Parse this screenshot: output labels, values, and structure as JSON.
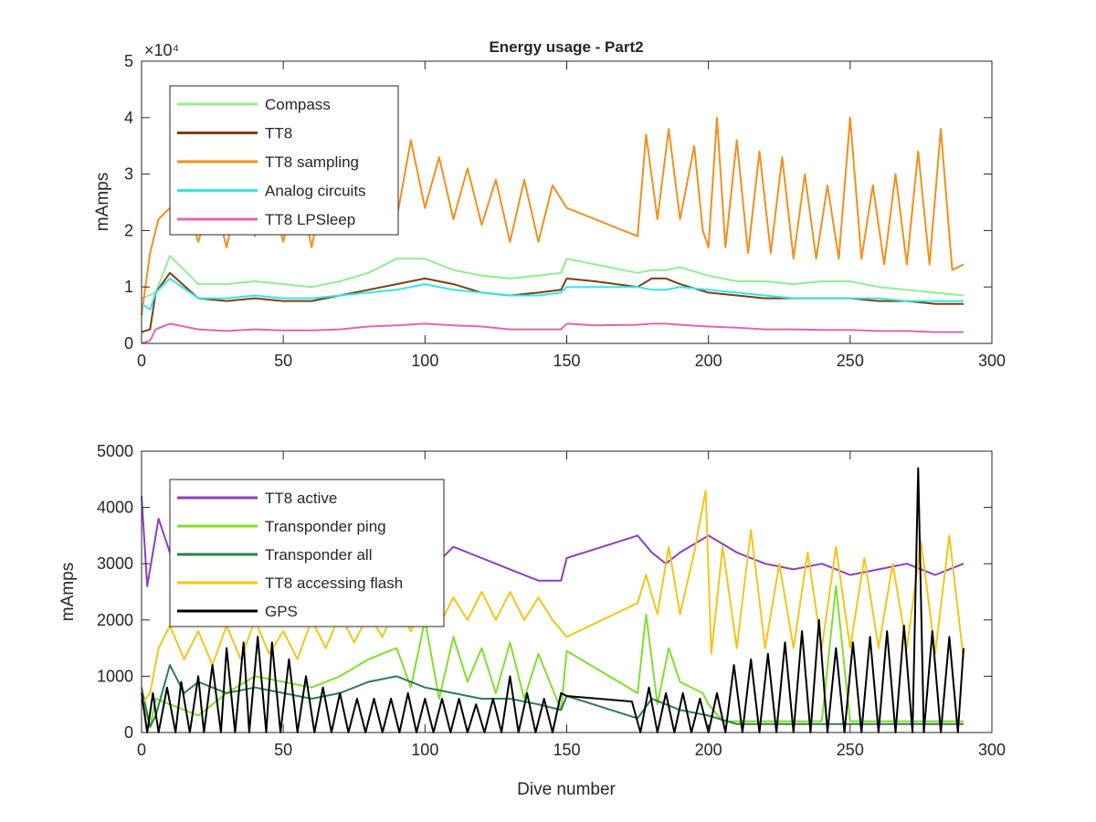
{
  "figure": {
    "title": "Energy usage - Part2",
    "colors": {
      "compass": "#90ee90",
      "tt8": "#7b3f14",
      "tt8_sampling": "#f0901e",
      "analog_circuits": "#33e6e6",
      "tt8_lpsleep": "#e066b0",
      "tt8_active": "#8e3dbe",
      "transponder_ping": "#7ee02a",
      "transponder_all": "#2e7d4f",
      "tt8_accessing_flash": "#f5c518",
      "gps": "#000000"
    }
  },
  "chart_data": [
    {
      "type": "line",
      "title": "Energy usage - Part2",
      "xlabel": "",
      "ylabel": "mAmps",
      "xlim": [
        0,
        300
      ],
      "ylim": [
        0,
        50000
      ],
      "x_ticks": [
        "0",
        "50",
        "100",
        "150",
        "200",
        "250",
        "300"
      ],
      "y_ticks": [
        "0",
        "1",
        "2",
        "3",
        "4",
        "5"
      ],
      "y_exponent_label": "×10⁴",
      "legend_position": "top-left",
      "series": [
        {
          "name": "Compass",
          "color": "#90ee90",
          "x": [
            0,
            5,
            10,
            20,
            30,
            40,
            50,
            60,
            70,
            80,
            90,
            100,
            110,
            120,
            130,
            140,
            148,
            150,
            160,
            175,
            180,
            185,
            190,
            200,
            210,
            220,
            230,
            240,
            250,
            260,
            270,
            280,
            290
          ],
          "y": [
            8000,
            9000,
            15500,
            10500,
            10500,
            11000,
            10500,
            10000,
            11000,
            12500,
            15000,
            15000,
            13000,
            12000,
            11500,
            12000,
            12500,
            15000,
            14000,
            12500,
            13000,
            13000,
            13500,
            12000,
            11000,
            11000,
            10500,
            11000,
            11000,
            10000,
            9500,
            9000,
            8500
          ]
        },
        {
          "name": "TT8",
          "color": "#7b3f14",
          "x": [
            0,
            3,
            5,
            10,
            20,
            30,
            40,
            50,
            60,
            70,
            80,
            90,
            100,
            110,
            120,
            130,
            140,
            148,
            150,
            160,
            175,
            180,
            185,
            190,
            200,
            210,
            220,
            230,
            240,
            250,
            260,
            270,
            280,
            290
          ],
          "y": [
            2000,
            2500,
            9000,
            12500,
            8000,
            7500,
            8000,
            7500,
            7500,
            8500,
            9500,
            10500,
            11500,
            10500,
            9000,
            8500,
            9000,
            9500,
            11500,
            11000,
            10000,
            11500,
            11500,
            10500,
            9000,
            8500,
            8000,
            8000,
            8000,
            8000,
            7500,
            7500,
            7000,
            7000
          ]
        },
        {
          "name": "TT8 sampling",
          "color": "#f0901e",
          "x": [
            0,
            3,
            6,
            10,
            15,
            20,
            25,
            30,
            35,
            40,
            45,
            50,
            55,
            60,
            65,
            70,
            75,
            80,
            85,
            90,
            95,
            100,
            105,
            110,
            115,
            120,
            125,
            130,
            135,
            140,
            145,
            150,
            175,
            178,
            182,
            186,
            190,
            195,
            198,
            200,
            203,
            206,
            210,
            214,
            218,
            222,
            226,
            230,
            234,
            238,
            242,
            246,
            250,
            254,
            258,
            262,
            266,
            270,
            274,
            278,
            282,
            286,
            290
          ],
          "y": [
            5000,
            16000,
            22000,
            24000,
            26000,
            18000,
            27000,
            17000,
            28000,
            19000,
            28000,
            18000,
            29000,
            17000,
            30000,
            20000,
            27000,
            20000,
            32000,
            22000,
            36000,
            24000,
            33000,
            22000,
            31000,
            21000,
            29000,
            18000,
            29000,
            18000,
            28000,
            24000,
            19000,
            37000,
            22000,
            38000,
            22000,
            35000,
            20000,
            17000,
            40000,
            17000,
            36000,
            16000,
            34000,
            16000,
            33000,
            15000,
            30000,
            15000,
            28000,
            15000,
            40000,
            15000,
            28000,
            14000,
            30000,
            14000,
            34000,
            14000,
            38000,
            13000,
            14000
          ]
        },
        {
          "name": "Analog circuits",
          "color": "#33e6e6",
          "x": [
            0,
            3,
            5,
            10,
            20,
            30,
            40,
            50,
            60,
            70,
            80,
            90,
            100,
            110,
            120,
            130,
            140,
            148,
            150,
            160,
            175,
            180,
            185,
            190,
            200,
            210,
            220,
            230,
            240,
            250,
            260,
            270,
            280,
            290
          ],
          "y": [
            7000,
            6000,
            9000,
            11500,
            8000,
            8000,
            8500,
            8000,
            8000,
            8500,
            9000,
            9500,
            10500,
            9500,
            9000,
            8500,
            8500,
            9000,
            10000,
            10000,
            10000,
            9500,
            9500,
            10000,
            9500,
            9000,
            8500,
            8000,
            8000,
            8000,
            8000,
            7500,
            7500,
            7500
          ]
        },
        {
          "name": "TT8 LPSleep",
          "color": "#e066b0",
          "x": [
            0,
            3,
            5,
            10,
            20,
            30,
            40,
            50,
            60,
            70,
            80,
            90,
            100,
            110,
            120,
            130,
            140,
            148,
            150,
            160,
            175,
            180,
            185,
            190,
            200,
            210,
            220,
            230,
            240,
            250,
            260,
            270,
            280,
            290
          ],
          "y": [
            0,
            500,
            2500,
            3500,
            2500,
            2200,
            2500,
            2300,
            2300,
            2500,
            3000,
            3200,
            3500,
            3200,
            3000,
            2500,
            2500,
            2500,
            3500,
            3200,
            3300,
            3500,
            3500,
            3300,
            3000,
            2800,
            2500,
            2500,
            2400,
            2400,
            2200,
            2200,
            2000,
            2000
          ]
        }
      ]
    },
    {
      "type": "line",
      "title": "",
      "xlabel": "Dive number",
      "ylabel": "mAmps",
      "xlim": [
        0,
        300
      ],
      "ylim": [
        0,
        5000
      ],
      "x_ticks": [
        "0",
        "50",
        "100",
        "150",
        "200",
        "250",
        "300"
      ],
      "y_ticks": [
        "0",
        "1000",
        "2000",
        "3000",
        "4000",
        "5000"
      ],
      "legend_position": "top-left",
      "series": [
        {
          "name": "TT8 active",
          "color": "#8e3dbe",
          "x": [
            0,
            2,
            4,
            6,
            8,
            10,
            20,
            30,
            40,
            50,
            60,
            70,
            80,
            90,
            100,
            110,
            120,
            130,
            140,
            148,
            150,
            175,
            180,
            185,
            190,
            200,
            210,
            220,
            230,
            240,
            250,
            260,
            270,
            280,
            290
          ],
          "y": [
            4200,
            2600,
            3200,
            3800,
            3500,
            3200,
            3100,
            3000,
            3300,
            3100,
            3100,
            3000,
            3200,
            3000,
            2800,
            3300,
            3100,
            2900,
            2700,
            2700,
            3100,
            3500,
            3200,
            3000,
            3200,
            3500,
            3200,
            3000,
            2900,
            3000,
            2800,
            2900,
            3000,
            2800,
            3000
          ]
        },
        {
          "name": "Transponder ping",
          "color": "#7ee02a",
          "x": [
            0,
            3,
            5,
            10,
            20,
            30,
            40,
            50,
            60,
            70,
            80,
            90,
            95,
            100,
            105,
            110,
            115,
            120,
            125,
            130,
            135,
            140,
            148,
            150,
            175,
            178,
            182,
            186,
            190,
            198,
            200,
            205,
            210,
            220,
            230,
            240,
            245,
            250,
            260,
            270,
            280,
            290
          ],
          "y": [
            600,
            100,
            600,
            500,
            300,
            700,
            1000,
            900,
            800,
            1000,
            1300,
            1500,
            800,
            2000,
            600,
            1700,
            900,
            1500,
            700,
            1600,
            600,
            1400,
            400,
            1450,
            700,
            2100,
            500,
            1500,
            900,
            700,
            500,
            200,
            200,
            200,
            200,
            200,
            2600,
            200,
            200,
            200,
            200,
            200
          ]
        },
        {
          "name": "Transponder all",
          "color": "#2e7d4f",
          "x": [
            0,
            3,
            5,
            10,
            15,
            20,
            30,
            40,
            50,
            60,
            70,
            80,
            90,
            100,
            110,
            120,
            130,
            140,
            148,
            150,
            175,
            180,
            185,
            190,
            200,
            210,
            220,
            230,
            240,
            250,
            260,
            270,
            280,
            290
          ],
          "y": [
            800,
            100,
            300,
            1200,
            700,
            900,
            700,
            800,
            700,
            600,
            700,
            900,
            1000,
            800,
            700,
            600,
            600,
            500,
            400,
            650,
            250,
            600,
            500,
            400,
            300,
            150,
            150,
            150,
            150,
            150,
            150,
            150,
            150,
            150
          ]
        },
        {
          "name": "TT8 accessing flash",
          "color": "#f5c518",
          "x": [
            0,
            3,
            6,
            10,
            15,
            20,
            25,
            30,
            35,
            40,
            45,
            50,
            55,
            60,
            65,
            70,
            75,
            80,
            85,
            90,
            95,
            100,
            105,
            110,
            115,
            120,
            125,
            130,
            135,
            140,
            145,
            150,
            175,
            178,
            182,
            186,
            190,
            195,
            199,
            201,
            205,
            210,
            215,
            220,
            225,
            230,
            235,
            240,
            245,
            250,
            255,
            260,
            265,
            270,
            275,
            280,
            285,
            290
          ],
          "y": [
            500,
            700,
            1500,
            1900,
            1300,
            1800,
            1200,
            1900,
            1300,
            2000,
            1400,
            1800,
            1300,
            2000,
            1500,
            2100,
            1600,
            2100,
            1700,
            2300,
            1800,
            2400,
            1900,
            2400,
            2000,
            2500,
            2000,
            2500,
            2000,
            2400,
            2000,
            1700,
            2300,
            2800,
            2100,
            3300,
            2100,
            3200,
            4300,
            1400,
            3300,
            1500,
            3600,
            1500,
            3000,
            1500,
            3200,
            1500,
            3300,
            1500,
            3100,
            1500,
            3000,
            1500,
            3400,
            1400,
            3500,
            1300
          ]
        },
        {
          "name": "GPS",
          "color": "#000000",
          "x": [
            0,
            2,
            4,
            6,
            9,
            12,
            14,
            17,
            20,
            22,
            25,
            28,
            30,
            33,
            36,
            38,
            41,
            44,
            46,
            49,
            52,
            55,
            58,
            61,
            64,
            67,
            70,
            73,
            76,
            79,
            82,
            85,
            88,
            91,
            94,
            97,
            100,
            103,
            106,
            109,
            112,
            115,
            118,
            121,
            124,
            127,
            130,
            133,
            136,
            139,
            142,
            145,
            148,
            150,
            173,
            176,
            179,
            182,
            185,
            188,
            191,
            194,
            197,
            200,
            203,
            206,
            209,
            212,
            215,
            218,
            221,
            224,
            227,
            230,
            233,
            236,
            239,
            242,
            245,
            248,
            251,
            254,
            257,
            260,
            263,
            266,
            269,
            272,
            274,
            276,
            279,
            282,
            285,
            288,
            290
          ],
          "y": [
            700,
            0,
            700,
            0,
            800,
            0,
            900,
            0,
            1000,
            0,
            1200,
            0,
            1500,
            0,
            1600,
            0,
            1700,
            0,
            1600,
            0,
            1300,
            0,
            1000,
            0,
            800,
            0,
            700,
            0,
            600,
            0,
            600,
            0,
            600,
            0,
            700,
            0,
            600,
            0,
            600,
            0,
            600,
            0,
            500,
            0,
            600,
            0,
            1000,
            0,
            700,
            0,
            600,
            0,
            700,
            650,
            550,
            0,
            800,
            0,
            700,
            0,
            700,
            0,
            600,
            0,
            700,
            0,
            1200,
            0,
            1300,
            0,
            1400,
            0,
            1600,
            0,
            1800,
            0,
            2000,
            0,
            1500,
            0,
            1600,
            0,
            1700,
            0,
            1800,
            0,
            1900,
            0,
            4700,
            0,
            1800,
            0,
            1700,
            0,
            1500
          ]
        }
      ]
    }
  ]
}
